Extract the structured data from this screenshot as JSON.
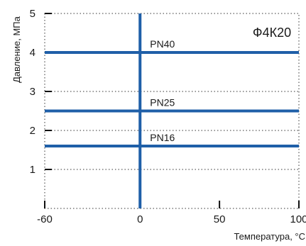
{
  "chart_data": {
    "type": "line",
    "title": "Ф4К20",
    "xlabel": "Температура, °С",
    "ylabel": "Давление, МПа",
    "xlim": [
      -60,
      100
    ],
    "ylim": [
      0,
      5
    ],
    "x_ticks": [
      -60,
      0,
      50,
      100
    ],
    "y_ticks": [
      1,
      2,
      3,
      4,
      5
    ],
    "grid": true,
    "grid_style": "dotted",
    "line_color": "#1f5fa8",
    "vertical_reference": {
      "x": 0
    },
    "series": [
      {
        "name": "PN40",
        "x": [
          -60,
          100
        ],
        "values": [
          4.0,
          4.0
        ]
      },
      {
        "name": "PN25",
        "x": [
          -60,
          100
        ],
        "values": [
          2.5,
          2.5
        ]
      },
      {
        "name": "PN16",
        "x": [
          -60,
          100
        ],
        "values": [
          1.6,
          1.6
        ]
      }
    ]
  }
}
